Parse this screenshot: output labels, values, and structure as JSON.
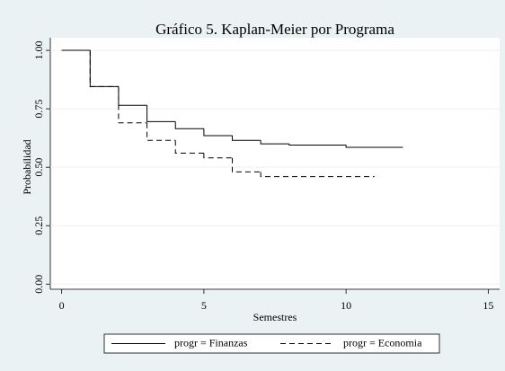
{
  "chart_data": {
    "type": "step",
    "title": "Gráfico 5. Kaplan-Meier por Programa",
    "x_label": "Semestres",
    "y_label": "Probabilidad",
    "xlim": [
      -0.4,
      15.4
    ],
    "ylim": [
      -0.022,
      1.054
    ],
    "xticks": [
      0,
      5,
      10,
      15
    ],
    "yticks": [
      {
        "value": 0,
        "label": "0.00"
      },
      {
        "value": 0.25,
        "label": "0.25"
      },
      {
        "value": 0.5,
        "label": "0.50"
      },
      {
        "value": 0.75,
        "label": "0.75"
      },
      {
        "value": 1,
        "label": "1.00"
      }
    ],
    "grid": true,
    "series": [
      {
        "name": "progr = Finanzas",
        "color": "#000000",
        "style": "solid",
        "x": [
          0,
          1,
          2,
          3,
          4,
          5,
          6,
          7,
          8,
          10,
          12
        ],
        "values": [
          1,
          0.845,
          0.765,
          0.695,
          0.665,
          0.635,
          0.615,
          0.6,
          0.595,
          0.585,
          0.585
        ]
      },
      {
        "name": "progr = Economia",
        "color": "#000000",
        "style": "dashed",
        "x": [
          0,
          1,
          2,
          3,
          4,
          5,
          6,
          7,
          11
        ],
        "values": [
          1,
          0.845,
          0.69,
          0.615,
          0.56,
          0.54,
          0.48,
          0.46,
          0.46
        ]
      }
    ]
  }
}
